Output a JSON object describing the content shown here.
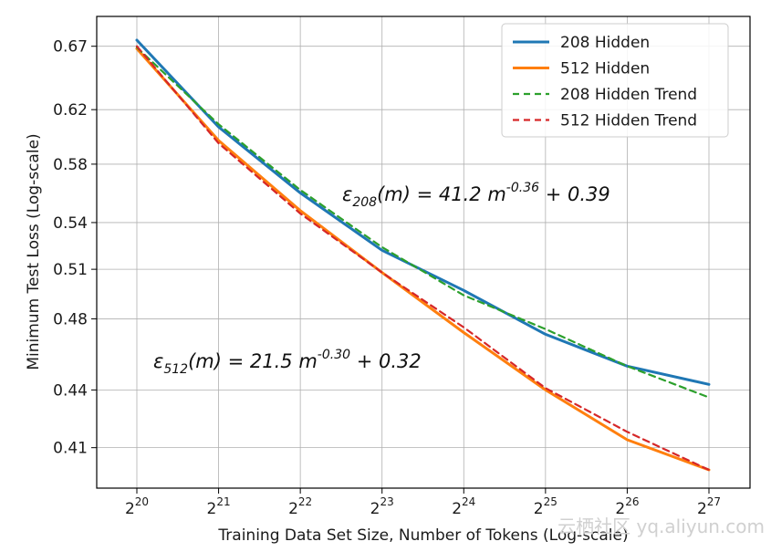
{
  "chart_data": {
    "type": "line",
    "xlabel": "Training Data Set Size, Number of Tokens (Log-scale)",
    "ylabel": "Minimum Test Loss (Log-scale)",
    "x_scale": "log2",
    "y_scale": "log",
    "xlim": [
      20,
      27
    ],
    "ylim": [
      0.3902,
      0.6949
    ],
    "x_ticks": [
      20,
      21,
      22,
      23,
      24,
      25,
      26,
      27
    ],
    "x_tick_base": "2",
    "y_ticks": [
      0.67,
      0.62,
      0.58,
      0.54,
      0.51,
      0.48,
      0.44,
      0.41
    ],
    "y_tick_labels": [
      "0.67",
      "0.62",
      "0.58",
      "0.54",
      "0.51",
      "0.48",
      "0.44",
      "0.41"
    ],
    "grid": true,
    "legend_position": "top-right",
    "series": [
      {
        "name": "208 Hidden",
        "color": "#1f77b4",
        "style": "solid",
        "x_log2": [
          20,
          21,
          22,
          23,
          24,
          25,
          26,
          27
        ],
        "values": [
          0.675,
          0.607,
          0.56,
          0.522,
          0.497,
          0.471,
          0.453,
          0.443
        ]
      },
      {
        "name": "512 Hidden",
        "color": "#ff7f0e",
        "style": "solid",
        "x_log2": [
          20,
          21,
          22,
          23,
          24,
          25,
          26,
          27
        ],
        "values": [
          0.668,
          0.597,
          0.548,
          0.508,
          0.472,
          0.44,
          0.414,
          0.399
        ]
      },
      {
        "name": "208 Hidden Trend",
        "color": "#2ca02c",
        "style": "dashed",
        "x_log2": [
          20,
          21,
          22,
          23,
          24,
          25,
          26,
          27
        ],
        "values": [
          0.669,
          0.609,
          0.562,
          0.524,
          0.494,
          0.474,
          0.453,
          0.436
        ]
      },
      {
        "name": "512 Hidden Trend",
        "color": "#d62728",
        "style": "dashed",
        "x_log2": [
          20,
          21,
          22,
          23,
          24,
          25,
          26,
          27
        ],
        "values": [
          0.67,
          0.595,
          0.546,
          0.508,
          0.475,
          0.441,
          0.418,
          0.399
        ]
      }
    ],
    "annotations": [
      {
        "symbol": "ε",
        "subscript": "208",
        "body": "(m) = 41.2 m",
        "exponent": "-0.36",
        "tail": " + 0.39"
      },
      {
        "symbol": "ε",
        "subscript": "512",
        "body": "(m) = 21.5 m",
        "exponent": "-0.30",
        "tail": " + 0.32"
      }
    ]
  },
  "watermark": "云栖社区 yq.aliyun.com"
}
